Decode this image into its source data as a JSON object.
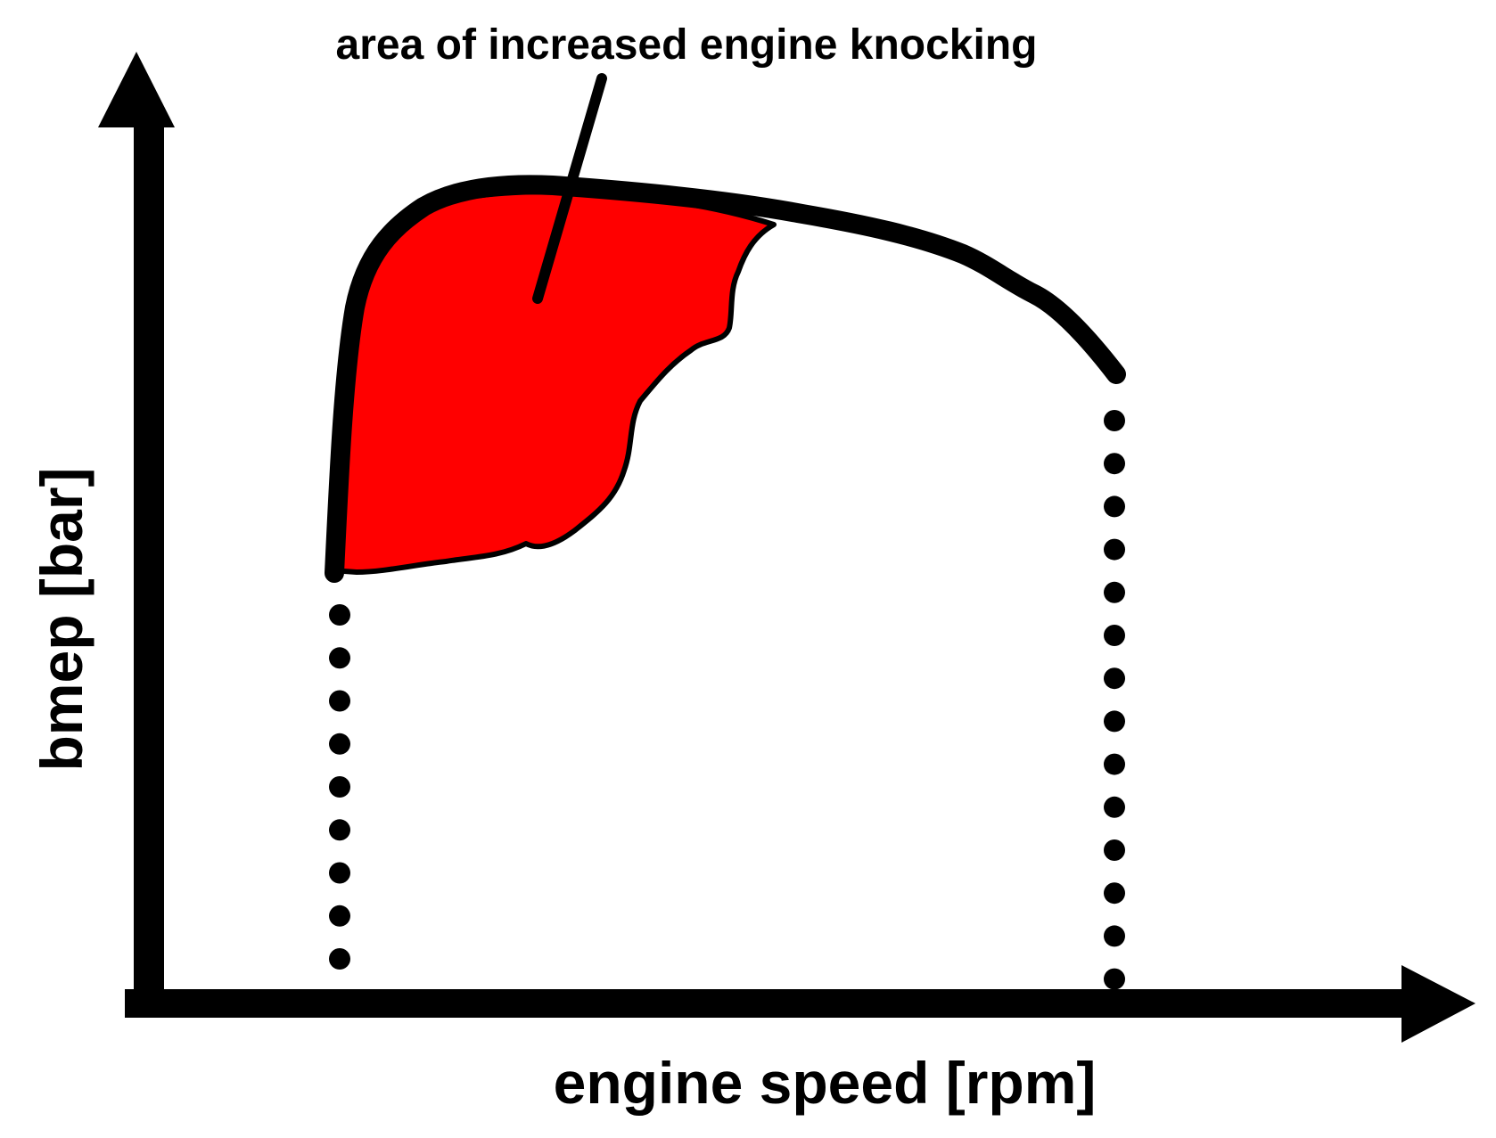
{
  "diagram": {
    "annotation": "area of increased engine knocking",
    "x_axis_label": "engine speed [rpm]",
    "y_axis_label": "bmep [bar]"
  },
  "colors": {
    "knock_area": "#ff0000",
    "ink": "#000000",
    "background": "#ffffff"
  }
}
